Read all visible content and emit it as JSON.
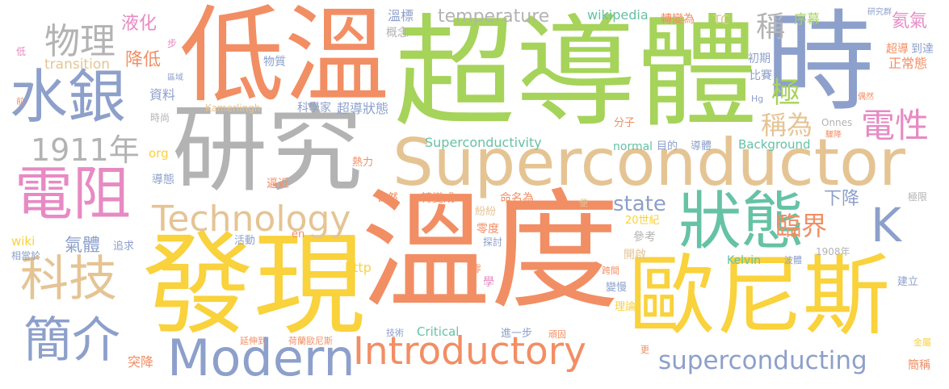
{
  "palette": {
    "orange": "#f28e64",
    "green": "#a6d35a",
    "yellow": "#f9d23c",
    "gray": "#b3b3b3",
    "blue": "#8da0cb",
    "pink": "#e78ac3",
    "tan": "#e5c494",
    "teal": "#66c2a5"
  },
  "words": [
    {
      "text": "低溫",
      "color": "orange"
    },
    {
      "text": "超導體",
      "color": "green"
    },
    {
      "text": "時",
      "color": "blue"
    },
    {
      "text": "研究",
      "color": "gray"
    },
    {
      "text": "溫度",
      "color": "orange"
    },
    {
      "text": "發現",
      "color": "yellow"
    },
    {
      "text": "歐尼斯",
      "color": "yellow"
    },
    {
      "text": "Superconductor",
      "color": "tan"
    },
    {
      "text": "水銀",
      "color": "blue"
    },
    {
      "text": "電阻",
      "color": "pink"
    },
    {
      "text": "狀態",
      "color": "teal"
    },
    {
      "text": "Introductory",
      "color": "orange"
    },
    {
      "text": "Modern",
      "color": "blue"
    },
    {
      "text": "Technology",
      "color": "tan"
    },
    {
      "text": "科技",
      "color": "tan"
    },
    {
      "text": "簡介",
      "color": "blue"
    },
    {
      "text": "物理",
      "color": "gray"
    },
    {
      "text": "1911年",
      "color": "gray"
    },
    {
      "text": "K",
      "color": "blue"
    },
    {
      "text": "superconducting",
      "color": "blue"
    },
    {
      "text": "稱",
      "color": "gray"
    },
    {
      "text": "極",
      "color": "green"
    },
    {
      "text": "電性",
      "color": "pink"
    },
    {
      "text": "稱為",
      "color": "tan"
    },
    {
      "text": "temperature",
      "color": "gray"
    },
    {
      "text": "state",
      "color": "blue"
    },
    {
      "text": "臨界",
      "color": "orange"
    },
    {
      "text": "下降",
      "color": "blue"
    },
    {
      "text": "液化",
      "color": "pink"
    },
    {
      "text": "降低",
      "color": "orange"
    },
    {
      "text": "氣體",
      "color": "blue"
    },
    {
      "text": "氦氣",
      "color": "pink"
    },
    {
      "text": "Superconductivity",
      "color": "teal"
    },
    {
      "text": "wikipedia",
      "color": "teal"
    },
    {
      "text": "transition",
      "color": "tan"
    },
    {
      "text": "超導狀態",
      "color": "blue"
    },
    {
      "text": "科學家",
      "color": "blue"
    },
    {
      "text": "資料",
      "color": "blue"
    },
    {
      "text": "序幕",
      "color": "green"
    },
    {
      "text": "溫標",
      "color": "blue"
    },
    {
      "text": "正常態",
      "color": "orange"
    },
    {
      "text": "超導",
      "color": "orange"
    },
    {
      "text": "到達",
      "color": "blue"
    },
    {
      "text": "初期",
      "color": "blue"
    },
    {
      "text": "比賽",
      "color": "blue"
    },
    {
      "text": "轉變為",
      "color": "orange"
    },
    {
      "text": "TC",
      "color": "tan"
    },
    {
      "text": "物質",
      "color": "blue"
    },
    {
      "text": "概念",
      "color": "gray"
    },
    {
      "text": "研究群",
      "color": "blue"
    },
    {
      "text": "步",
      "color": "pink"
    },
    {
      "text": "低",
      "color": "pink"
    },
    {
      "text": "前",
      "color": "orange"
    },
    {
      "text": "區域",
      "color": "blue"
    },
    {
      "text": "時尚",
      "color": "gray"
    },
    {
      "text": "Kamerlingh",
      "color": "tan"
    },
    {
      "text": "Hg",
      "color": "blue"
    },
    {
      "text": "偶然",
      "color": "orange"
    },
    {
      "text": "Onnes",
      "color": "gray"
    },
    {
      "text": "驟降",
      "color": "orange"
    },
    {
      "text": "分子",
      "color": "orange"
    },
    {
      "text": "normal",
      "color": "teal"
    },
    {
      "text": "目的",
      "color": "blue"
    },
    {
      "text": "導體",
      "color": "blue"
    },
    {
      "text": "Background",
      "color": "teal"
    },
    {
      "text": "org",
      "color": "yellow"
    },
    {
      "text": "熱力",
      "color": "orange"
    },
    {
      "text": "導態",
      "color": "blue"
    },
    {
      "text": "逼近",
      "color": "orange"
    },
    {
      "text": "自然",
      "color": "orange"
    },
    {
      "text": "轉變成",
      "color": "orange"
    },
    {
      "text": "命名為",
      "color": "orange"
    },
    {
      "text": "便",
      "color": "tan"
    },
    {
      "text": "紛紛",
      "color": "tan"
    },
    {
      "text": "20世紀",
      "color": "yellow"
    },
    {
      "text": "極限",
      "color": "gray"
    },
    {
      "text": "en",
      "color": "orange"
    },
    {
      "text": "wiki",
      "color": "yellow"
    },
    {
      "text": "追求",
      "color": "blue"
    },
    {
      "text": "活動",
      "color": "blue"
    },
    {
      "text": "相當於",
      "color": "blue"
    },
    {
      "text": "零度",
      "color": "orange"
    },
    {
      "text": "探討",
      "color": "blue"
    },
    {
      "text": "參考",
      "color": "gray"
    },
    {
      "text": "開啟",
      "color": "tan"
    },
    {
      "text": "Kelvin",
      "color": "teal"
    },
    {
      "text": "波體",
      "color": "blue"
    },
    {
      "text": "1908年",
      "color": "gray"
    },
    {
      "text": "http",
      "color": "yellow"
    },
    {
      "text": "零",
      "color": "orange"
    },
    {
      "text": "學",
      "color": "pink"
    },
    {
      "text": "跨間",
      "color": "orange"
    },
    {
      "text": "變慢",
      "color": "blue"
    },
    {
      "text": "建立",
      "color": "blue"
    },
    {
      "text": "理論",
      "color": "yellow"
    },
    {
      "text": "技術",
      "color": "blue"
    },
    {
      "text": "Critical",
      "color": "teal"
    },
    {
      "text": "進一步",
      "color": "blue"
    },
    {
      "text": "頑固",
      "color": "orange"
    },
    {
      "text": "延伸到",
      "color": "orange"
    },
    {
      "text": "荷蘭歐尼斯",
      "color": "orange"
    },
    {
      "text": "更",
      "color": "orange"
    },
    {
      "text": "金屬",
      "color": "yellow"
    },
    {
      "text": "突降",
      "color": "orange"
    },
    {
      "text": "簡稱",
      "color": "orange"
    }
  ]
}
